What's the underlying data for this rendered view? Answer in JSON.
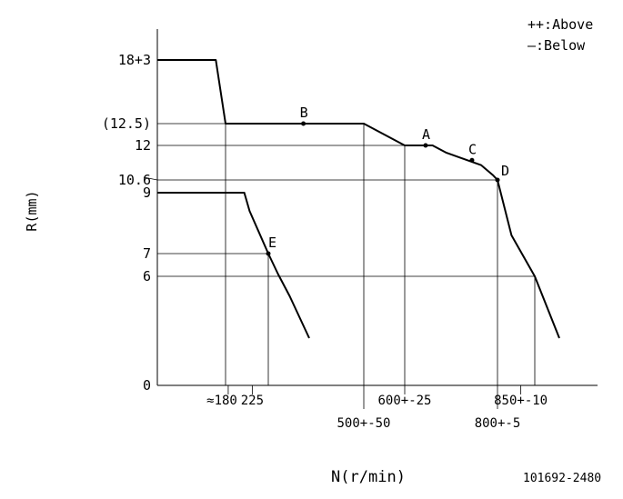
{
  "chart_data": {
    "type": "line",
    "xlabel": "N(r/min)",
    "ylabel": "R(mm)",
    "legend": {
      "placement": "top-right",
      "entries": [
        "++:Above",
        "—:Below"
      ]
    },
    "drawing_number": "101692-2480",
    "x_tick_labels": [
      {
        "value": 180,
        "label": "≈180",
        "row": 1
      },
      {
        "value": 225,
        "label": "225",
        "row": 1
      },
      {
        "value": 500,
        "label": "500+-50",
        "row": 2
      },
      {
        "value": 600,
        "label": "600+-25",
        "row": 1
      },
      {
        "value": 800,
        "label": "800+-5",
        "row": 2
      },
      {
        "value": 850,
        "label": "850+-10",
        "row": 1
      }
    ],
    "y_tick_labels": [
      {
        "value": 0,
        "label": "0"
      },
      {
        "value": 6,
        "label": "6"
      },
      {
        "value": 7,
        "label": "7"
      },
      {
        "value": 9,
        "label": "9"
      },
      {
        "value": 10.6,
        "label": "10.6"
      },
      {
        "value": 12,
        "label": "12"
      },
      {
        "value": 12.5,
        "label": "(12.5)"
      },
      {
        "value": 18,
        "label": "18+3"
      }
    ],
    "series": [
      {
        "points": [
          [
            0,
            18
          ],
          [
            150,
            18
          ],
          [
            175,
            12.5
          ],
          [
            500,
            12.5
          ],
          [
            600,
            12
          ],
          [
            660,
            12
          ],
          [
            690,
            11.7
          ],
          [
            765,
            11.2
          ],
          [
            790,
            10.8
          ],
          [
            800,
            10.6
          ],
          [
            830,
            7.6
          ],
          [
            880,
            6
          ],
          [
            960,
            2.6
          ]
        ]
      },
      {
        "points": [
          [
            0,
            9
          ],
          [
            210,
            9
          ],
          [
            220,
            8.4
          ],
          [
            255,
            7
          ],
          [
            280,
            6.1
          ],
          [
            310,
            4.9
          ],
          [
            360,
            2.6
          ]
        ]
      }
    ],
    "reference_lines": [
      {
        "type": "h",
        "value": 12.5,
        "from": 0,
        "to": 500
      },
      {
        "type": "h",
        "value": 12,
        "from": 0,
        "to": 600
      },
      {
        "type": "h",
        "value": 10.6,
        "from": 0,
        "to": 800
      },
      {
        "type": "h",
        "value": 7,
        "from": 0,
        "to": 255
      },
      {
        "type": "h",
        "value": 6,
        "from": 0,
        "to": 880
      },
      {
        "type": "v",
        "value": 175,
        "from": 0,
        "to": 12.5
      },
      {
        "type": "v",
        "value": 255,
        "from": 0,
        "to": 7
      },
      {
        "type": "v",
        "value": 500,
        "from": 0,
        "to": 12.5
      },
      {
        "type": "v",
        "value": 600,
        "from": 0,
        "to": 12
      },
      {
        "type": "v",
        "value": 800,
        "from": 0,
        "to": 10.6
      },
      {
        "type": "v",
        "value": 880,
        "from": 0,
        "to": 6
      }
    ],
    "points": [
      {
        "name": "A",
        "x": 645,
        "y": 12
      },
      {
        "name": "B",
        "x": 345,
        "y": 12.5
      },
      {
        "name": "C",
        "x": 745,
        "y": 11.4
      },
      {
        "name": "D",
        "x": 800,
        "y": 10.6
      },
      {
        "name": "E",
        "x": 255,
        "y": 7
      }
    ]
  }
}
